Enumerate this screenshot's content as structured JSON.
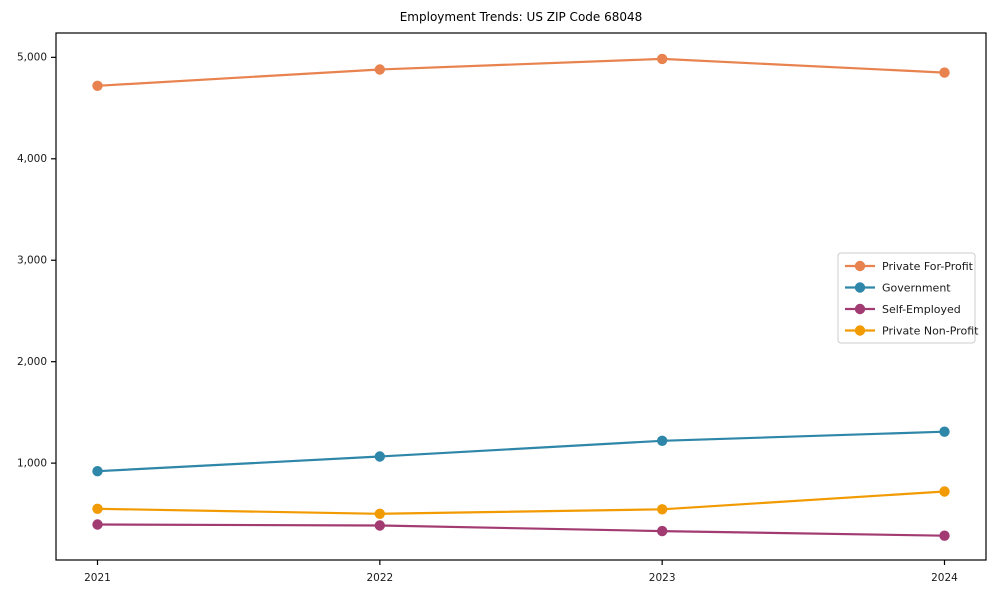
{
  "chart_data": {
    "type": "line",
    "title": "Employment Trends: US ZIP Code 68048",
    "x": [
      2021,
      2022,
      2023,
      2024
    ],
    "x_tick_labels": [
      "2021",
      "2022",
      "2023",
      "2024"
    ],
    "y_ticks": [
      1000,
      2000,
      3000,
      4000,
      5000
    ],
    "y_tick_labels": [
      "1,000",
      "2,000",
      "3,000",
      "4,000",
      "5,000"
    ],
    "xlim": [
      2020.853,
      2024.147
    ],
    "ylim": [
      45,
      5240
    ],
    "grid": false,
    "legend_position": "center-right",
    "axis_color": "#000000",
    "tick_label_color": "#1a1a1a",
    "background_color": "#ffffff",
    "legend_border_color": "#cccccc",
    "series": [
      {
        "name": "Private For-Profit",
        "color": "#E8824E",
        "values": [
          4720,
          4880,
          4985,
          4850
        ]
      },
      {
        "name": "Government",
        "color": "#2E86A8",
        "values": [
          920,
          1065,
          1220,
          1310
        ]
      },
      {
        "name": "Self-Employed",
        "color": "#A23B72",
        "values": [
          395,
          385,
          330,
          285
        ]
      },
      {
        "name": "Private Non-Profit",
        "color": "#F29A02",
        "values": [
          550,
          500,
          545,
          720
        ]
      }
    ]
  }
}
